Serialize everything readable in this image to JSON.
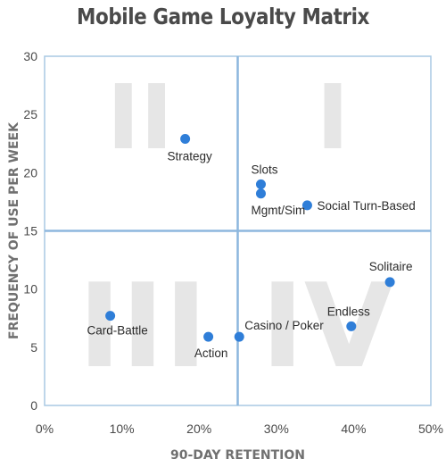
{
  "chart_data": {
    "type": "scatter",
    "title": "Mobile Game Loyalty Matrix",
    "xlabel": "90-DAY RETENTION",
    "ylabel": "FREQUENCY OF USE PER WEEK",
    "xlim": [
      0,
      50
    ],
    "ylim": [
      0,
      30
    ],
    "x_ticks": [
      "0%",
      "10%",
      "20%",
      "30%",
      "40%",
      "50%"
    ],
    "y_ticks": [
      "0",
      "5",
      "10",
      "15",
      "20",
      "25",
      "30"
    ],
    "x_tick_values": [
      0,
      10,
      20,
      30,
      40,
      50
    ],
    "y_tick_values": [
      0,
      5,
      10,
      15,
      20,
      25,
      30
    ],
    "dividers": {
      "x": 25,
      "y": 15
    },
    "grid": false,
    "quadrant_labels": [
      "I",
      "II",
      "III",
      "IV"
    ],
    "points": [
      {
        "label": "Strategy",
        "x": 18.2,
        "y": 22.9
      },
      {
        "label": "Slots",
        "x": 28.0,
        "y": 19.0
      },
      {
        "label": "Mgmt/Sim",
        "x": 28.0,
        "y": 18.2
      },
      {
        "label": "Social Turn-Based",
        "x": 34.0,
        "y": 17.2
      },
      {
        "label": "Solitaire",
        "x": 44.7,
        "y": 10.6
      },
      {
        "label": "Endless",
        "x": 39.7,
        "y": 6.8
      },
      {
        "label": "Card-Battle",
        "x": 8.5,
        "y": 7.7
      },
      {
        "label": "Action",
        "x": 21.2,
        "y": 5.9
      },
      {
        "label": "Casino / Poker",
        "x": 25.2,
        "y": 5.9
      }
    ],
    "colors": {
      "point": "#2f7ed8",
      "frame": "#a8c8e4",
      "divider": "#8db7de"
    }
  }
}
